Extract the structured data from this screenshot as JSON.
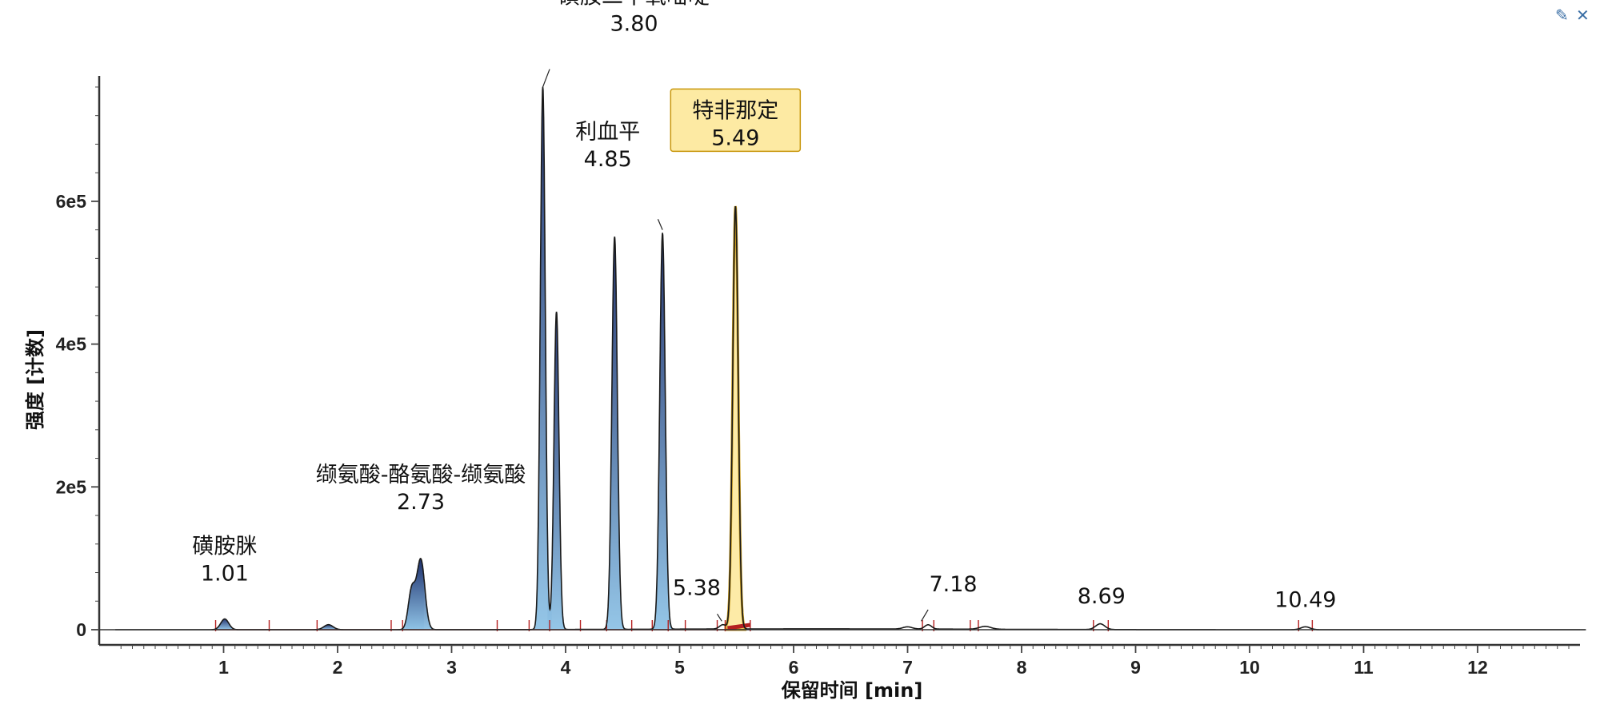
{
  "window": {
    "pin_icon": "pin-icon",
    "close_icon": "close-icon",
    "pin_glyph": "✎",
    "close_glyph": "✕",
    "accent_color": "#3a6ea5"
  },
  "chart_data": {
    "type": "line",
    "title": "",
    "xlabel": "保留时间 [min]",
    "ylabel": "强度 [计数]",
    "xlim": [
      0,
      13
    ],
    "ylim": [
      -20000,
      770000
    ],
    "xticks": [
      1,
      2,
      3,
      4,
      5,
      6,
      7,
      8,
      9,
      10,
      11,
      12
    ],
    "yticks": [
      {
        "value": 0,
        "label": "0"
      },
      {
        "value": 200000,
        "label": "2e5"
      },
      {
        "value": 400000,
        "label": "4e5"
      },
      {
        "value": 600000,
        "label": "6e5"
      }
    ],
    "grid": false,
    "colors": {
      "trace": "#1a1a1a",
      "peak_fill_dark": "#1c2e6b",
      "peak_fill_light": "#8fc3e6",
      "highlight_stroke": "#c8960c",
      "highlight_fill": "#fdeaa3",
      "baseline": "#b52020"
    },
    "peaks": [
      {
        "rt": 1.01,
        "height": 15000,
        "width": 0.035,
        "labelled": true,
        "shaded": true
      },
      {
        "rt": 1.92,
        "height": 7000,
        "width": 0.04,
        "labelled": false,
        "shaded": true
      },
      {
        "rt": 2.65,
        "height": 55000,
        "width": 0.03,
        "labelled": false,
        "shaded": true
      },
      {
        "rt": 2.73,
        "height": 98000,
        "width": 0.035,
        "labelled": true,
        "shaded": true
      },
      {
        "rt": 3.8,
        "height": 760000,
        "width": 0.022,
        "labelled": true,
        "shaded": true
      },
      {
        "rt": 3.92,
        "height": 445000,
        "width": 0.022,
        "labelled": false,
        "shaded": true
      },
      {
        "rt": 4.43,
        "height": 550000,
        "width": 0.024,
        "labelled": false,
        "shaded": true
      },
      {
        "rt": 4.85,
        "height": 555000,
        "width": 0.024,
        "labelled": true,
        "shaded": true
      },
      {
        "rt": 5.38,
        "height": 6000,
        "width": 0.03,
        "labelled": true,
        "shaded": false
      },
      {
        "rt": 5.49,
        "height": 592000,
        "width": 0.024,
        "labelled": true,
        "shaded": true,
        "highlight": true
      },
      {
        "rt": 7.0,
        "height": 3000,
        "width": 0.04,
        "labelled": false,
        "shaded": false
      },
      {
        "rt": 7.18,
        "height": 6000,
        "width": 0.03,
        "labelled": true,
        "shaded": false
      },
      {
        "rt": 7.68,
        "height": 4000,
        "width": 0.05,
        "labelled": false,
        "shaded": false
      },
      {
        "rt": 8.69,
        "height": 8000,
        "width": 0.04,
        "labelled": true,
        "shaded": false
      },
      {
        "rt": 10.49,
        "height": 4000,
        "width": 0.04,
        "labelled": true,
        "shaded": false
      }
    ],
    "annotations": [
      {
        "name": "磺胺脒",
        "rt_label": "1.01",
        "x": 1.01,
        "y": 60000,
        "highlight": false
      },
      {
        "name": "缬氨酸-酪氨酸-缬氨酸",
        "rt_label": "2.73",
        "x": 2.73,
        "y": 160000,
        "highlight": false
      },
      {
        "name": "磺胺二甲氧嘧啶",
        "rt_label": "3.80",
        "x": 4.6,
        "y": 830000,
        "highlight": false
      },
      {
        "name": "利血平",
        "rt_label": "4.85",
        "x": 4.37,
        "y": 640000,
        "highlight": false
      },
      {
        "name": "",
        "rt_label": "5.38",
        "x": 5.15,
        "y": 40000,
        "highlight": false
      },
      {
        "name": "特非那定",
        "rt_label": "5.49",
        "x": 5.49,
        "y": 670000,
        "highlight": true
      },
      {
        "name": "",
        "rt_label": "7.18",
        "x": 7.4,
        "y": 45000,
        "highlight": false
      },
      {
        "name": "",
        "rt_label": "8.69",
        "x": 8.7,
        "y": 28000,
        "highlight": false
      },
      {
        "name": "",
        "rt_label": "10.49",
        "x": 10.49,
        "y": 23000,
        "highlight": false
      }
    ]
  }
}
